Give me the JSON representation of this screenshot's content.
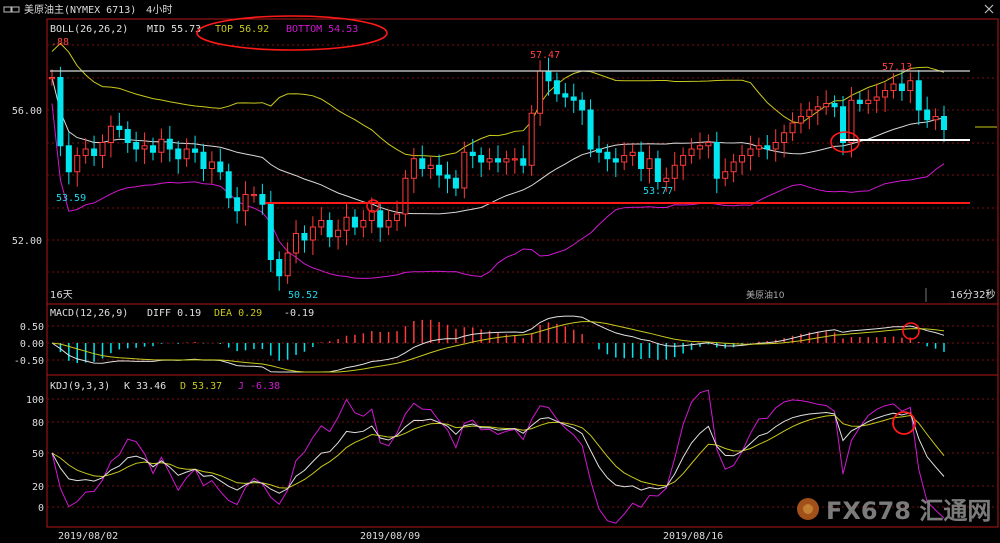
{
  "header": {
    "window_icon": "window-toggle-icon",
    "title": "美原油主(NYMEX 6713)",
    "period": "4小时",
    "close_icon": "close-icon"
  },
  "boll": {
    "label": "BOLL(26,26,2)",
    "mid": "MID 55.73",
    "top": "TOP 56.92",
    "bottom": "BOTTOM 54.53",
    "colors": {
      "top": "#c8c81e",
      "mid": "#d8d8d8",
      "bottom": "#d018d0"
    }
  },
  "macd": {
    "label": "MACD(12,26,9)",
    "diff": "DIFF 0.19",
    "dea": "DEA 0.29",
    "macd": "-0.19",
    "yticks": [
      "0.50",
      "0.00",
      "-0.50"
    ]
  },
  "kdj": {
    "label": "KDJ(9,3,3)",
    "k": "K 33.46",
    "d": "D 53.37",
    "j": "J -6.38",
    "yticks": [
      "100",
      "80",
      "50",
      "20",
      "0"
    ]
  },
  "price_axis": {
    "ticks": [
      "56.00",
      "52.00"
    ]
  },
  "price_labels": {
    "cut_left": ".88",
    "low_1": "53.59",
    "low_2": "50.52",
    "high_1": "57.47",
    "low_3": "53.77",
    "high_2": "57.13"
  },
  "footer": {
    "period_left": "16天",
    "symbol": "美原油10",
    "countdown": "16分32秒",
    "dates": [
      "2019/08/02",
      "2019/08/09",
      "2019/08/16"
    ],
    "watermark": "FX678 汇通网"
  },
  "colors": {
    "up": "#ff3a3a",
    "down": "#00e5ee",
    "grid": "#7a1010",
    "frame": "#b01818",
    "annotation": "#ff1a1a"
  },
  "chart_data": {
    "type": "candlestick",
    "instrument": "美原油主(NYMEX 6713)",
    "interval": "4小时",
    "x_dates": [
      "2019/08/02",
      "2019/08/09",
      "2019/08/16"
    ],
    "price_ylim": [
      50.0,
      58.2
    ],
    "candles_close": [
      57.0,
      54.9,
      54.1,
      54.6,
      54.8,
      54.6,
      55.0,
      55.5,
      55.4,
      55.0,
      54.8,
      54.9,
      54.7,
      55.1,
      54.8,
      54.5,
      54.8,
      54.7,
      54.2,
      54.4,
      54.1,
      53.3,
      52.9,
      53.4,
      53.4,
      53.1,
      51.4,
      50.9,
      51.6,
      52.2,
      52.0,
      52.4,
      52.6,
      52.1,
      52.3,
      52.7,
      52.4,
      52.6,
      52.9,
      52.4,
      52.6,
      52.8,
      53.9,
      54.5,
      54.2,
      54.3,
      54.0,
      53.9,
      53.6,
      54.7,
      54.6,
      54.4,
      54.5,
      54.4,
      54.5,
      54.5,
      54.3,
      55.9,
      57.2,
      56.9,
      56.5,
      56.4,
      56.3,
      56.0,
      54.8,
      54.7,
      54.5,
      54.4,
      54.6,
      54.7,
      54.2,
      54.5,
      53.8,
      53.9,
      54.3,
      54.6,
      54.8,
      54.9,
      55.0,
      53.9,
      54.1,
      54.4,
      54.6,
      54.8,
      54.9,
      54.8,
      55.0,
      55.3,
      55.6,
      55.8,
      56.0,
      56.1,
      56.2,
      56.1,
      55.0,
      56.3,
      56.2,
      56.3,
      56.4,
      56.6,
      56.8,
      56.6,
      56.9,
      56.0,
      55.7,
      55.8,
      55.4
    ],
    "price_labels": [
      57.47,
      53.59,
      50.52,
      53.77,
      57.13
    ],
    "horizontal_levels": [
      56.85,
      52.1,
      54.97
    ],
    "boll": {
      "top": 56.92,
      "mid": 55.73,
      "bottom": 54.53
    },
    "macd": {
      "diff": 0.19,
      "dea": 0.29,
      "macd": -0.19,
      "ylim": [
        -0.8,
        0.8
      ]
    },
    "kdj": {
      "k": 33.46,
      "d": 53.37,
      "j": -6.38,
      "ylim": [
        -10,
        110
      ]
    }
  }
}
